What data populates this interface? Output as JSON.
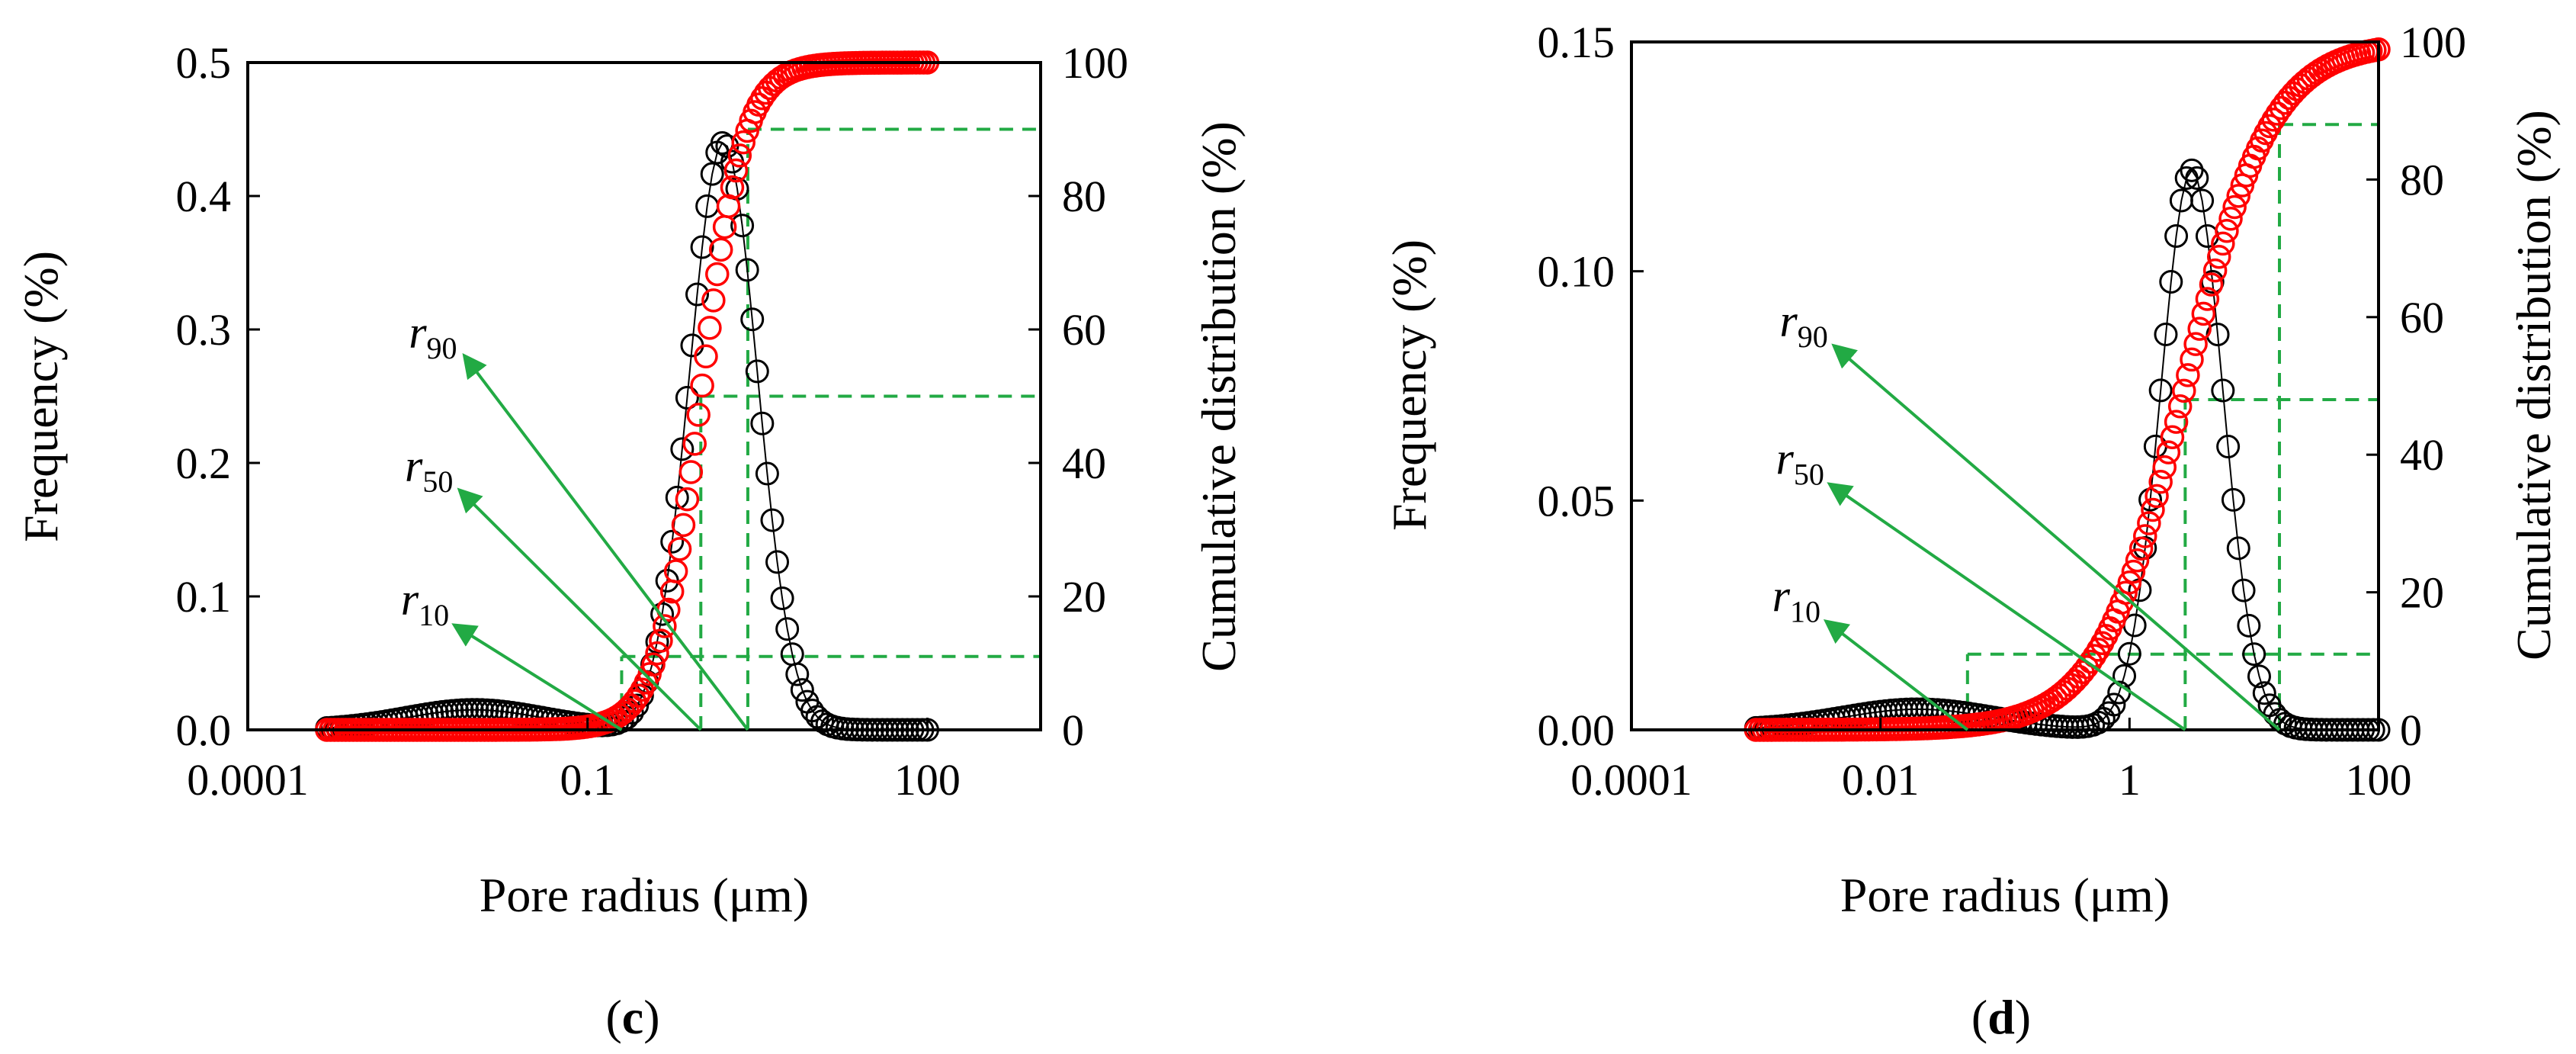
{
  "chart_data": [
    {
      "type": "scatter",
      "panel_label": "c",
      "xlabel": "Pore radius (μm)",
      "ylabel_left": "Frequency (%)",
      "ylabel_right": "Cumulative distribution (%)",
      "xscale": "log",
      "xlim": [
        0.0001,
        1000
      ],
      "xticks": [
        0.0001,
        0.1,
        100
      ],
      "xtick_labels": [
        "0.0001",
        "0.1",
        "100"
      ],
      "ylim_left": [
        0,
        0.5
      ],
      "yticks_left": [
        0.0,
        0.1,
        0.2,
        0.3,
        0.4,
        0.5
      ],
      "ytick_labels_left": [
        "0.0",
        "0.1",
        "0.2",
        "0.3",
        "0.4",
        "0.5"
      ],
      "ylim_right": [
        0,
        100
      ],
      "yticks_right": [
        0,
        20,
        40,
        60,
        80,
        100
      ],
      "ytick_labels_right": [
        "0",
        "20",
        "40",
        "60",
        "80",
        "100"
      ],
      "frequency_peak": {
        "x_center_log10": 0.2,
        "sigma": 0.3,
        "height": 0.44
      },
      "cumulative_span": {
        "x_start": 0.0005,
        "x_end": 100
      },
      "percentiles": [
        {
          "name": "r",
          "sub": "10",
          "x": 0.2,
          "cum": 11
        },
        {
          "name": "r",
          "sub": "50",
          "x": 1.0,
          "cum": 50
        },
        {
          "name": "r",
          "sub": "90",
          "x": 2.6,
          "cum": 90
        }
      ],
      "series": [
        {
          "name": "Frequency",
          "axis": "left",
          "marker": "open-circle",
          "color": "#000000"
        },
        {
          "name": "Cumulative distribution",
          "axis": "right",
          "marker": "open-circle",
          "color": "#ff0000"
        }
      ]
    },
    {
      "type": "scatter",
      "panel_label": "d",
      "xlabel": "Pore radius (μm)",
      "ylabel_left": "Frequency (%)",
      "ylabel_right": "Cumulative distribution (%)",
      "xscale": "log",
      "xlim": [
        0.0001,
        100
      ],
      "xticks": [
        0.0001,
        0.01,
        1,
        100
      ],
      "xtick_labels": [
        "0.0001",
        "0.01",
        "1",
        "100"
      ],
      "ylim_left": [
        0,
        0.15
      ],
      "yticks_left": [
        0.0,
        0.05,
        0.1,
        0.15
      ],
      "ytick_labels_left": [
        "0.00",
        "0.05",
        "0.10",
        "0.15"
      ],
      "ylim_right": [
        0,
        100
      ],
      "yticks_right": [
        0,
        20,
        40,
        60,
        80,
        100
      ],
      "ytick_labels_right": [
        "0",
        "20",
        "40",
        "60",
        "80",
        "100"
      ],
      "frequency_peak": {
        "x_center_log10": 0.5,
        "sigma": 0.25,
        "height": 0.122
      },
      "cumulative_span": {
        "x_start": 0.001,
        "x_end": 100
      },
      "percentiles": [
        {
          "name": "r",
          "sub": "10",
          "x": 0.05,
          "cum": 11
        },
        {
          "name": "r",
          "sub": "50",
          "x": 2.8,
          "cum": 48
        },
        {
          "name": "r",
          "sub": "90",
          "x": 16,
          "cum": 88
        }
      ],
      "series": [
        {
          "name": "Frequency",
          "axis": "left",
          "marker": "open-circle",
          "color": "#000000"
        },
        {
          "name": "Cumulative distribution",
          "axis": "right",
          "marker": "open-circle",
          "color": "#ff0000"
        }
      ]
    }
  ],
  "colors": {
    "guide": "#22aa44",
    "frequency": "#000000",
    "cumulative": "#ff0000"
  }
}
